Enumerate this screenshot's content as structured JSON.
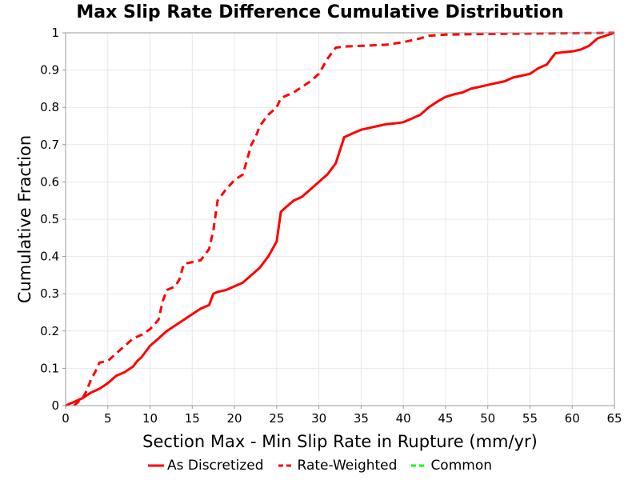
{
  "chart_data": {
    "type": "line",
    "title": "Max Slip Rate Difference Cumulative Distribution",
    "xlabel": "Section Max - Min Slip Rate in Rupture (mm/yr)",
    "ylabel": "Cumulative Fraction",
    "xlim": [
      0,
      65
    ],
    "ylim": [
      0,
      1
    ],
    "x_ticks": [
      "0",
      "5",
      "10",
      "15",
      "20",
      "25",
      "30",
      "35",
      "40",
      "45",
      "50",
      "55",
      "60",
      "65"
    ],
    "y_ticks": [
      "0",
      "0.1",
      "0.2",
      "0.3",
      "0.4",
      "0.5",
      "0.6",
      "0.7",
      "0.8",
      "0.9",
      "1"
    ],
    "grid": true,
    "legend_position": "bottom",
    "series": [
      {
        "name": "As Discretized",
        "color": "#ff0000",
        "dash": "solid",
        "x": [
          0,
          2,
          3,
          4,
          5,
          6,
          7,
          8,
          8.5,
          9,
          10,
          11,
          12,
          13,
          14,
          15,
          16,
          17,
          17.5,
          18,
          19,
          20,
          21,
          22,
          23,
          24,
          25,
          25.5,
          26,
          27,
          28,
          29,
          30,
          31,
          32,
          33,
          34,
          35,
          36,
          37,
          38,
          39,
          40,
          41,
          42,
          43,
          44,
          45,
          46,
          47,
          48,
          49,
          50,
          51,
          52,
          53,
          54,
          55,
          56,
          57,
          58,
          59,
          60,
          61,
          62,
          63,
          65
        ],
        "y": [
          0,
          0.02,
          0.035,
          0.045,
          0.06,
          0.08,
          0.09,
          0.105,
          0.12,
          0.13,
          0.16,
          0.18,
          0.2,
          0.215,
          0.23,
          0.245,
          0.26,
          0.27,
          0.3,
          0.305,
          0.31,
          0.32,
          0.33,
          0.35,
          0.37,
          0.4,
          0.44,
          0.52,
          0.53,
          0.55,
          0.56,
          0.58,
          0.6,
          0.62,
          0.65,
          0.72,
          0.73,
          0.74,
          0.745,
          0.75,
          0.755,
          0.757,
          0.76,
          0.77,
          0.78,
          0.8,
          0.815,
          0.828,
          0.835,
          0.84,
          0.85,
          0.855,
          0.86,
          0.865,
          0.87,
          0.88,
          0.885,
          0.89,
          0.905,
          0.915,
          0.945,
          0.948,
          0.95,
          0.955,
          0.965,
          0.985,
          1.0
        ]
      },
      {
        "name": "Rate-Weighted",
        "color": "#ff0000",
        "dash": "dashed",
        "x": [
          1,
          2,
          2.5,
          3,
          3.5,
          4,
          5,
          6,
          7,
          8,
          9,
          10,
          11,
          11.5,
          12,
          13,
          13.5,
          14,
          15,
          16,
          17,
          17.5,
          18,
          19,
          20,
          21,
          22,
          22.5,
          23,
          24,
          25,
          25.5,
          26,
          27,
          28,
          29,
          30,
          31,
          32,
          33,
          35,
          38,
          40,
          42,
          43,
          45,
          50,
          55,
          60,
          65
        ],
        "y": [
          0,
          0.02,
          0.04,
          0.07,
          0.09,
          0.115,
          0.12,
          0.14,
          0.16,
          0.18,
          0.19,
          0.205,
          0.23,
          0.28,
          0.31,
          0.32,
          0.34,
          0.38,
          0.385,
          0.39,
          0.42,
          0.47,
          0.55,
          0.58,
          0.605,
          0.62,
          0.7,
          0.72,
          0.75,
          0.78,
          0.8,
          0.825,
          0.83,
          0.84,
          0.855,
          0.87,
          0.89,
          0.93,
          0.96,
          0.963,
          0.965,
          0.968,
          0.975,
          0.985,
          0.992,
          0.995,
          0.997,
          0.998,
          0.999,
          1.0
        ]
      },
      {
        "name": "Common",
        "color": "#00ff00",
        "dash": "dashed",
        "x": [],
        "y": []
      }
    ]
  }
}
